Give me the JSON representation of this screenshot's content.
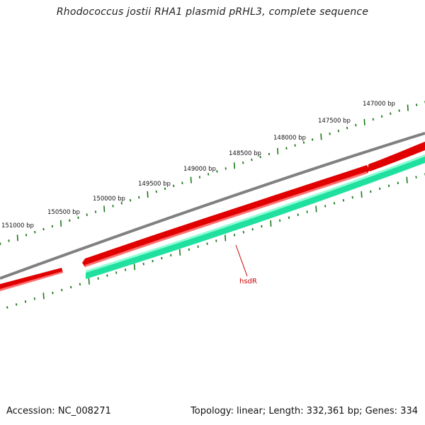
{
  "title": "Rhodococcus jostii RHA1 plasmid pRHL3, complete sequence",
  "footer": {
    "accession": "Accession: NC_008271",
    "summary": "Topology: linear; Length: 332,361 bp; Genes: 334"
  },
  "colors": {
    "backbone": "#808080",
    "forward_gene": "#e00000",
    "reverse_gene": "#20e0a0",
    "tick": "#1a7a1a",
    "gene_label": "#cc0000"
  },
  "ticks": [
    {
      "label": "147000 bp"
    },
    {
      "label": "147500 bp"
    },
    {
      "label": "148000 bp"
    },
    {
      "label": "148500 bp"
    },
    {
      "label": "149000 bp"
    },
    {
      "label": "149500 bp"
    },
    {
      "label": "150000 bp"
    },
    {
      "label": "150500 bp"
    },
    {
      "label": "151000 bp"
    }
  ],
  "genes": [
    {
      "name": "hsdR",
      "strand": "reverse"
    }
  ]
}
